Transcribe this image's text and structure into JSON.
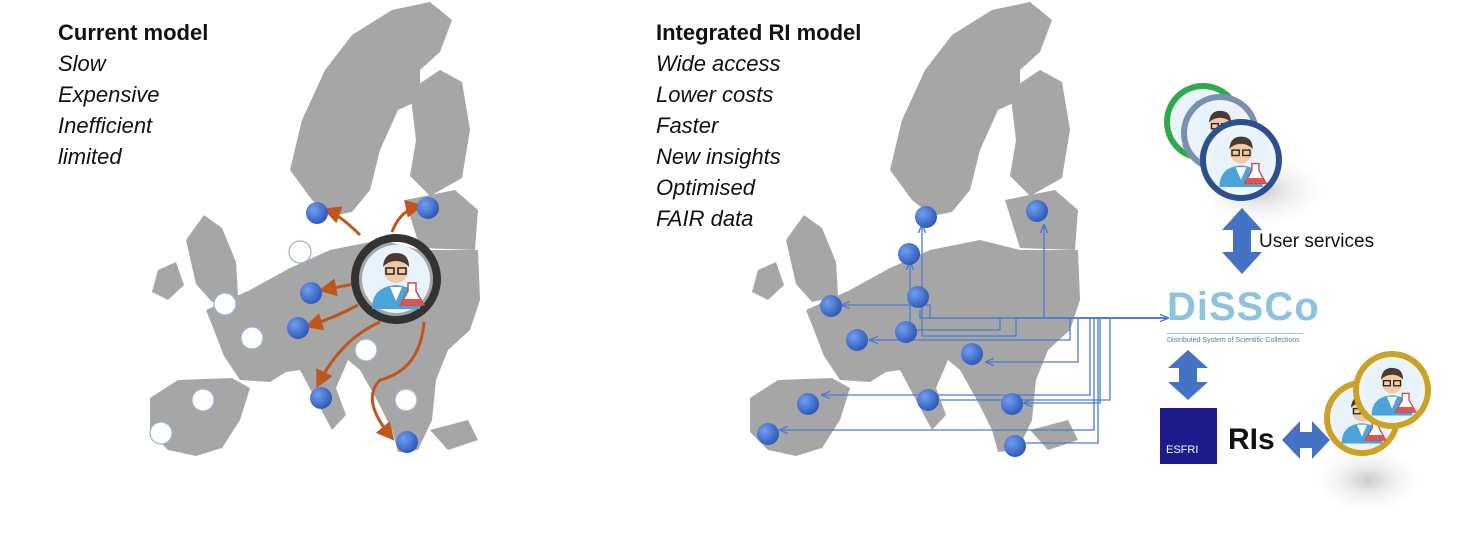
{
  "current_model": {
    "title": "Current model",
    "items": [
      "Slow",
      "Expensive",
      "Inefficient",
      "limited"
    ]
  },
  "integrated_model": {
    "title": "Integrated RI model",
    "items": [
      "Wide access",
      "Lower costs",
      "Faster",
      "New insights",
      "Optimised",
      "FAIR data"
    ]
  },
  "labels": {
    "user_services": "User services",
    "ris": "RIs",
    "esfri": "ESFRI",
    "dissco_name": "DiSSCo",
    "dissco_subtitle": "Distributed System of Scientific Collections"
  },
  "colors": {
    "map": "#a6a6a6",
    "node": "#3a6fd0",
    "arrow_current": "#c0561b",
    "arrow_integrated": "#4a7bd4",
    "bidirectional_arrow": "#4472c4",
    "esfri": "#1d1a8c",
    "dissco": "#8ec3e0"
  },
  "icons": {
    "user": "scientist-avatar-icon",
    "map": "europe-map"
  }
}
